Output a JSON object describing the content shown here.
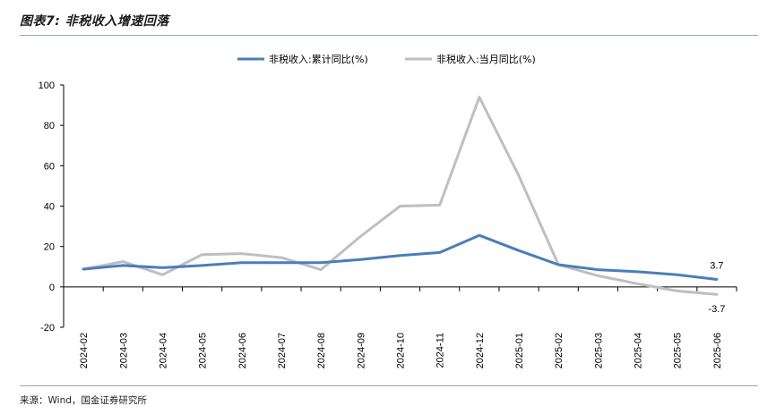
{
  "figure_title": "图表7: 非税收入增速回落",
  "source": "来源：Wind，国金证券研究所",
  "colors": {
    "cumulative": "#4a7ebb",
    "monthly": "#bfbfbf"
  },
  "chart_data": {
    "type": "line",
    "categories": [
      "2024-02",
      "2024-03",
      "2024-04",
      "2024-05",
      "2024-06",
      "2024-07",
      "2024-08",
      "2024-09",
      "2024-10",
      "2024-11",
      "2024-12",
      "2025-01",
      "2025-02",
      "2025-03",
      "2025-04",
      "2025-05",
      "2025-06"
    ],
    "series": [
      {
        "name": "非税收入:累计同比(%)",
        "values": [
          8.8,
          10.6,
          9.5,
          10.6,
          12.0,
          12.0,
          12.0,
          13.5,
          15.5,
          17.0,
          25.5,
          18.0,
          11.0,
          8.5,
          7.5,
          6.0,
          3.7
        ]
      },
      {
        "name": "非税收入:当月同比(%)",
        "values": [
          8.8,
          12.5,
          6.0,
          16.0,
          16.5,
          14.5,
          8.5,
          25.0,
          40.0,
          40.5,
          94.0,
          55.0,
          11.0,
          5.5,
          1.5,
          -2.0,
          -3.7
        ]
      }
    ],
    "yticks": [
      "-20",
      "0",
      "20",
      "40",
      "60",
      "80",
      "100"
    ],
    "ylim": [
      -20,
      100
    ],
    "data_labels": [
      {
        "series": 0,
        "index": 16,
        "text": "3.7"
      },
      {
        "series": 1,
        "index": 16,
        "text": "-3.7"
      }
    ],
    "legend_position": "top-center",
    "grid": false
  }
}
